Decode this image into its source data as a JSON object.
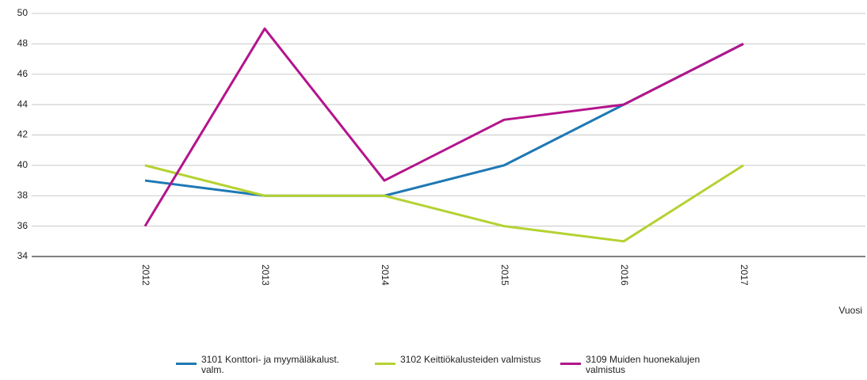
{
  "chart_data": {
    "type": "line",
    "categories": [
      "2012",
      "2013",
      "2014",
      "2015",
      "2016",
      "2017"
    ],
    "x_label": "Vuosi",
    "series": [
      {
        "name": "3101  Konttori- ja myymäläkalust. valm.",
        "color": "#1e78b4",
        "values": [
          39,
          38,
          38,
          40,
          44,
          48
        ]
      },
      {
        "name": "3102  Keittiökalusteiden valmistus",
        "color": "#b4d232",
        "values": [
          40,
          38,
          38,
          36,
          35,
          40
        ]
      },
      {
        "name": "3109  Muiden huonekalujen valmistus",
        "color": "#b4148c",
        "values": [
          36,
          49,
          39,
          43,
          44,
          48
        ]
      }
    ],
    "ylim": [
      34,
      50
    ],
    "yticks": [
      34,
      36,
      38,
      40,
      42,
      44,
      46,
      48,
      50
    ],
    "grid": true
  }
}
